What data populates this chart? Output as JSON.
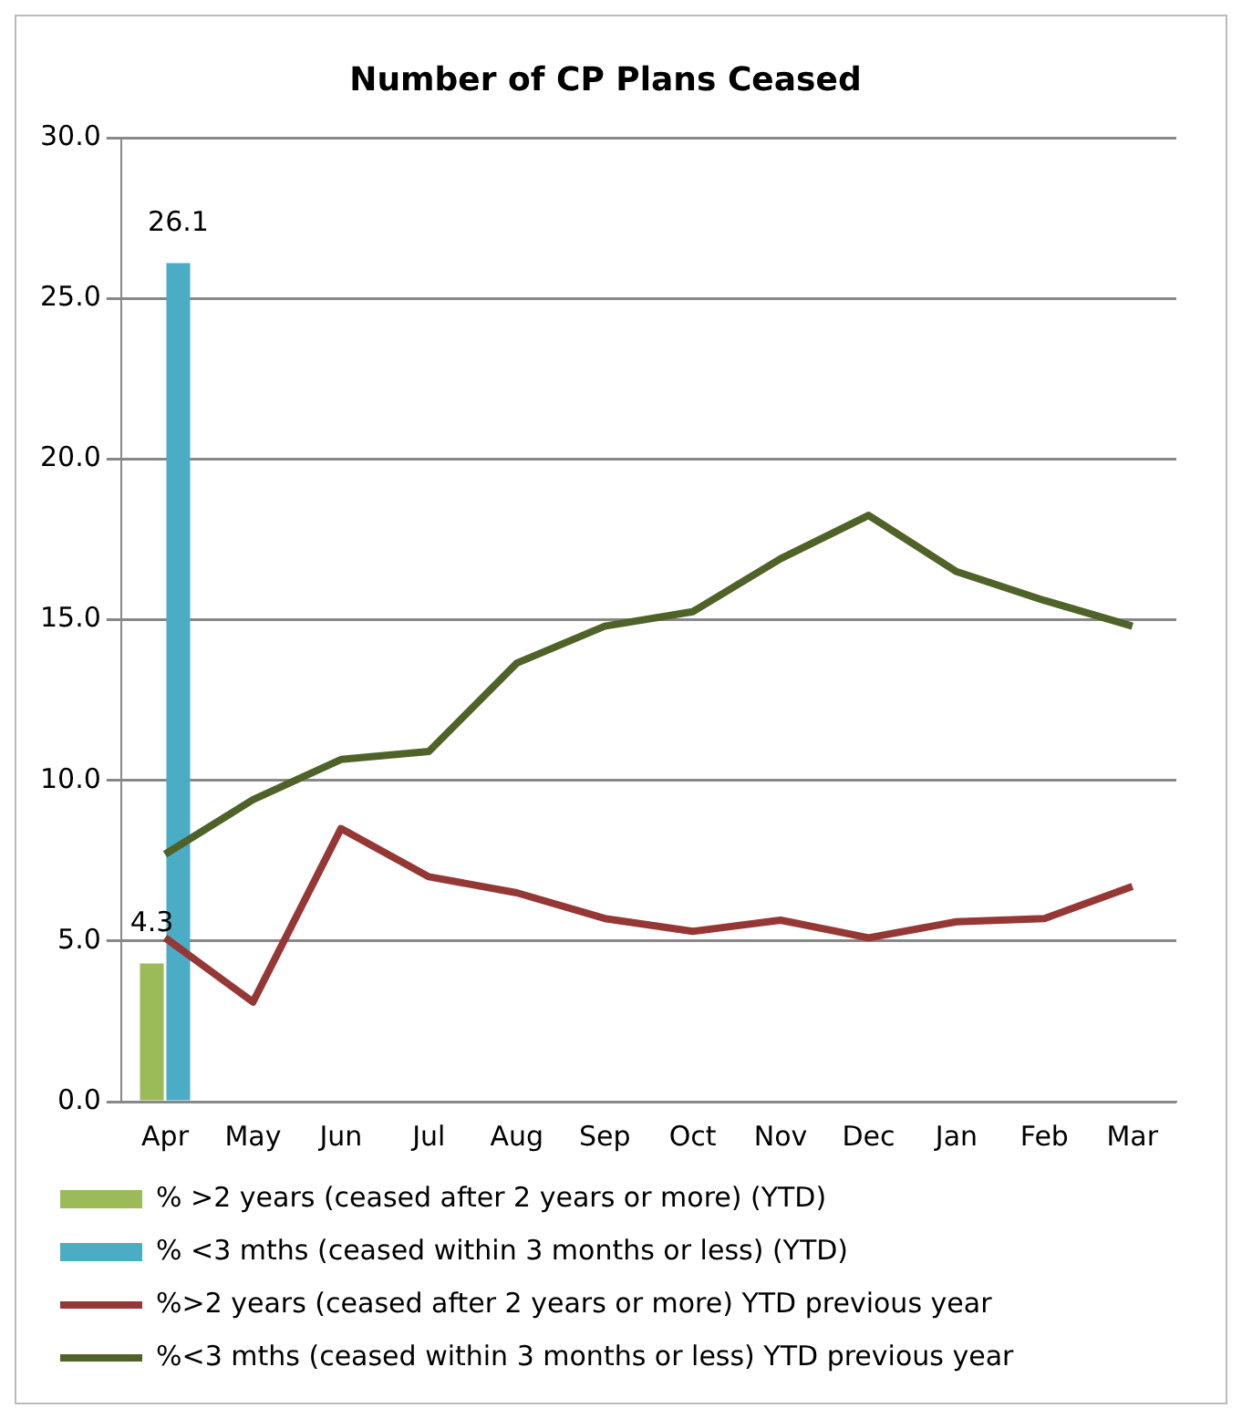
{
  "chart_data": {
    "type": "bar",
    "title": "Number of CP Plans Ceased",
    "categories": [
      "Apr",
      "May",
      "Jun",
      "Jul",
      "Aug",
      "Sep",
      "Oct",
      "Nov",
      "Dec",
      "Jan",
      "Feb",
      "Mar"
    ],
    "series": [
      {
        "name": "% >2 years (ceased after 2 years or more) (YTD)",
        "type": "bar",
        "color": "#9bbb59",
        "values": [
          4.3,
          null,
          null,
          null,
          null,
          null,
          null,
          null,
          null,
          null,
          null,
          null
        ],
        "value_labels": [
          "4.3",
          null,
          null,
          null,
          null,
          null,
          null,
          null,
          null,
          null,
          null,
          null
        ]
      },
      {
        "name": "% <3 mths (ceased within 3 months or less) (YTD)",
        "type": "bar",
        "color": "#4bacc6",
        "values": [
          26.1,
          null,
          null,
          null,
          null,
          null,
          null,
          null,
          null,
          null,
          null,
          null
        ],
        "value_labels": [
          "26.1",
          null,
          null,
          null,
          null,
          null,
          null,
          null,
          null,
          null,
          null,
          null
        ]
      },
      {
        "name": "%>2 years (ceased after 2 years or more) YTD previous year",
        "type": "line",
        "color": "#953735",
        "values": [
          5.1,
          3.1,
          8.5,
          7.0,
          6.5,
          5.7,
          5.3,
          5.65,
          5.1,
          5.6,
          5.7,
          6.7
        ]
      },
      {
        "name": "%<3 mths (ceased within 3 months or less) YTD previous year",
        "type": "line",
        "color": "#4f6228",
        "values": [
          7.7,
          9.4,
          10.65,
          10.9,
          13.65,
          14.8,
          15.25,
          16.9,
          18.25,
          16.5,
          15.6,
          14.8
        ]
      }
    ],
    "ylim": [
      0,
      30
    ],
    "yticks": [
      {
        "value": 0,
        "label": "0.0"
      },
      {
        "value": 5,
        "label": "5.0"
      },
      {
        "value": 10,
        "label": "10.0"
      },
      {
        "value": 15,
        "label": "15.0"
      },
      {
        "value": 20,
        "label": "20.0"
      },
      {
        "value": 25,
        "label": "25.0"
      },
      {
        "value": 30,
        "label": "30.0"
      }
    ],
    "grid": "y",
    "legend": "bottom",
    "marker": "none",
    "line_style": "solid"
  }
}
